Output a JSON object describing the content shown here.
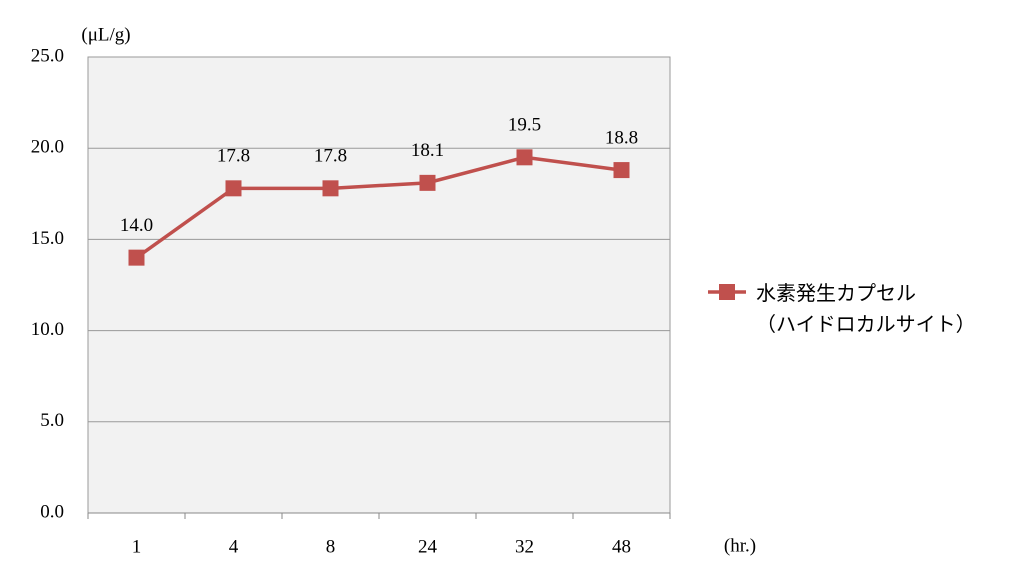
{
  "chart_data": {
    "type": "line",
    "y_axis_label": "(μL/g)",
    "x_axis_label": "(hr.)",
    "categories": [
      "1",
      "4",
      "8",
      "24",
      "32",
      "48"
    ],
    "series": [
      {
        "name": "水素発生カプセル\n（ハイドロカルサイト）",
        "color": "#c0504d",
        "values": [
          14.0,
          17.8,
          17.8,
          18.1,
          19.5,
          18.8
        ],
        "value_labels": [
          "14.0",
          "17.8",
          "17.8",
          "18.1",
          "19.5",
          "18.8"
        ]
      }
    ],
    "ylim": [
      0,
      25
    ],
    "yticks": [
      {
        "value": 0,
        "label": "0.0"
      },
      {
        "value": 5,
        "label": "5.0"
      },
      {
        "value": 10,
        "label": "10.0"
      },
      {
        "value": 15,
        "label": "15.0"
      },
      {
        "value": 20,
        "label": "20.0"
      },
      {
        "value": 25,
        "label": "25.0"
      }
    ],
    "grid": true,
    "legend": "right"
  }
}
